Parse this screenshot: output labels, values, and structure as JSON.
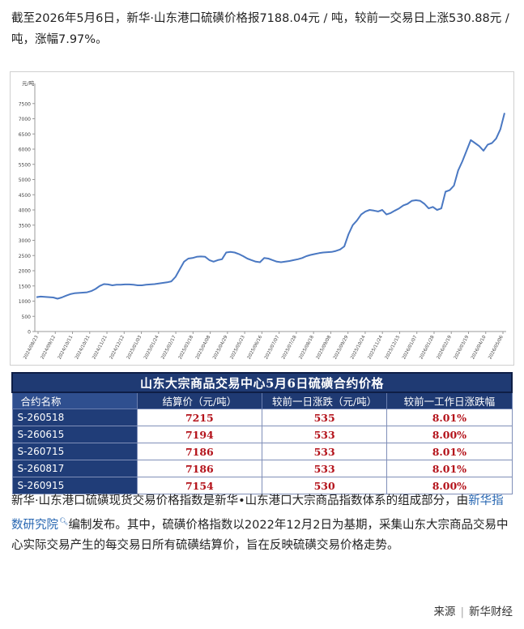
{
  "intro": "截至2026年5月6日，新华·山东港口硫磺价格报7188.04元 / 吨，较前一交易日上涨530.88元 / 吨，涨幅7.97%。",
  "chart_data": {
    "type": "line",
    "ylabel": "元/吨",
    "ylim": [
      0,
      8000
    ],
    "yticks": [
      0,
      500,
      1000,
      1500,
      2000,
      2500,
      3000,
      3500,
      4000,
      4500,
      5000,
      5500,
      6000,
      6500,
      7000,
      7500
    ],
    "xticks": [
      "2024/08/23",
      "2024/09/12",
      "2024/10/11",
      "2024/10/31",
      "2024/11/21",
      "2024/12/12",
      "2025/01/03",
      "2025/01/24",
      "2025/02/17",
      "2025/03/18",
      "2025/04/08",
      "2025/04/29",
      "2025/05/23",
      "2025/06/16",
      "2025/07/07",
      "2025/07/28",
      "2025/08/18",
      "2025/09/08",
      "2025/09/29",
      "2025/10/24",
      "2025/11/24",
      "2025/12/15",
      "2026/01/07",
      "2026/01/28",
      "2026/02/19",
      "2026/03/19",
      "2026/04/10",
      "2026/05/06"
    ],
    "series": [
      {
        "values": [
          1130,
          1150,
          1140,
          1130,
          1120,
          1080,
          1120,
          1180,
          1230,
          1260,
          1270,
          1280,
          1290,
          1330,
          1400,
          1500,
          1560,
          1550,
          1520,
          1540,
          1540,
          1550,
          1550,
          1540,
          1520,
          1520,
          1540,
          1550,
          1560,
          1580,
          1600,
          1620,
          1650,
          1800,
          2050,
          2300,
          2400,
          2420,
          2460,
          2470,
          2460,
          2350,
          2300,
          2350,
          2380,
          2600,
          2620,
          2600,
          2550,
          2480,
          2400,
          2350,
          2300,
          2280,
          2420,
          2400,
          2350,
          2300,
          2280,
          2300,
          2320,
          2350,
          2380,
          2420,
          2480,
          2520,
          2550,
          2580,
          2600,
          2610,
          2620,
          2650,
          2700,
          2800,
          3200,
          3500,
          3650,
          3850,
          3950,
          4000,
          3980,
          3950,
          4000,
          3850,
          3900,
          3980,
          4050,
          4150,
          4200,
          4300,
          4320,
          4300,
          4200,
          4050,
          4100,
          4000,
          4050,
          4600,
          4650,
          4800,
          5300,
          5600,
          5950,
          6300,
          6200,
          6100,
          5950,
          6150,
          6200,
          6350,
          6650,
          7188
        ]
      }
    ]
  },
  "table": {
    "title": "山东大宗商品交易中心5月6日硫磺合约价格",
    "headers": [
      "合约名称",
      "结算价（元/吨）",
      "较前一日涨跌（元/吨）",
      "较前一工作日涨跌幅"
    ],
    "rows": [
      [
        "S-260518",
        "7215",
        "535",
        "8.01%"
      ],
      [
        "S-260615",
        "7194",
        "533",
        "8.00%"
      ],
      [
        "S-260715",
        "7186",
        "533",
        "8.01%"
      ],
      [
        "S-260817",
        "7186",
        "533",
        "8.01%"
      ],
      [
        "S-260915",
        "7154",
        "530",
        "8.00%"
      ]
    ]
  },
  "body": {
    "part1": "新华·山东港口硫磺现货交易价格指数是新华•山东港口大宗商品指数体系的组成部分，由",
    "link": "新华指数研究院",
    "part2": "编制发布。其中，硫磺价格指数以2022年12月2日为基期，采集山东大宗商品交易中心实际交易产生的每交易日所有硫磺结算价，旨在反映硫磺交易价格走势。"
  },
  "footer": {
    "label": "来源",
    "source": "新华财经"
  }
}
